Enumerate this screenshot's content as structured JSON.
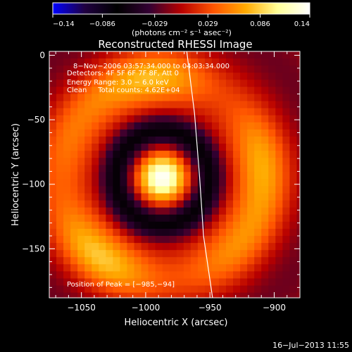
{
  "chart_data": {
    "type": "heatmap",
    "title": "Reconstructed RHESSI Image",
    "xlabel": "Heliocentric X (arcsec)",
    "ylabel": "Heliocentric Y (arcsec)",
    "xlim": [
      -1075,
      -880
    ],
    "ylim": [
      -188,
      3
    ],
    "xticks": [
      -1050,
      -1000,
      -950,
      -900
    ],
    "xtick_labels": [
      "−1050",
      "−1000",
      "−950",
      "−900"
    ],
    "yticks": [
      0,
      -50,
      -100,
      -150
    ],
    "ytick_labels": [
      "0",
      "−50",
      "−100",
      "−150"
    ],
    "colorbar": {
      "min": -0.14,
      "max": 0.14,
      "ticks": [
        -0.14,
        -0.086,
        -0.029,
        0.029,
        0.086,
        0.14
      ],
      "tick_labels": [
        "−0.14",
        "−0.086",
        "−0.029",
        "0.029",
        "0.086",
        "0.14"
      ],
      "unit_label": "(photons cm⁻² s⁻¹ asec⁻²)",
      "colormap": [
        "#0000ff",
        "#200040",
        "#000000",
        "#330033",
        "#b80000",
        "#ff5500",
        "#ffaa00",
        "#ffff99",
        "#ffffff"
      ]
    },
    "annotations": [
      "8−Nov−2006 03:57:34.000 to 04:03:34.000",
      "Detectors: 4F 5F 6F 7F 8F, Att 0",
      "Energy Range: 3.0 − 6.0 keV",
      "Clean     Total counts: 4.62E+04"
    ],
    "peak_label": "Position of Peak = [−985,−94]",
    "peak": {
      "x": -985,
      "y": -94,
      "value": 0.14
    },
    "source_model": {
      "core": {
        "x": -987,
        "y": -95,
        "value": 0.14,
        "sigma": 13
      },
      "inner_ring": {
        "radius": 36,
        "value": -0.07
      },
      "outer_ring": {
        "radius": 78,
        "value": 0.075
      }
    },
    "limb_curve": [
      [
        -968,
        3
      ],
      [
        -962,
        -45
      ],
      [
        -958,
        -95
      ],
      [
        -955,
        -140
      ],
      [
        -948,
        -188
      ]
    ],
    "timestamp": "16−Jul−2013 11:55",
    "grid": false
  }
}
